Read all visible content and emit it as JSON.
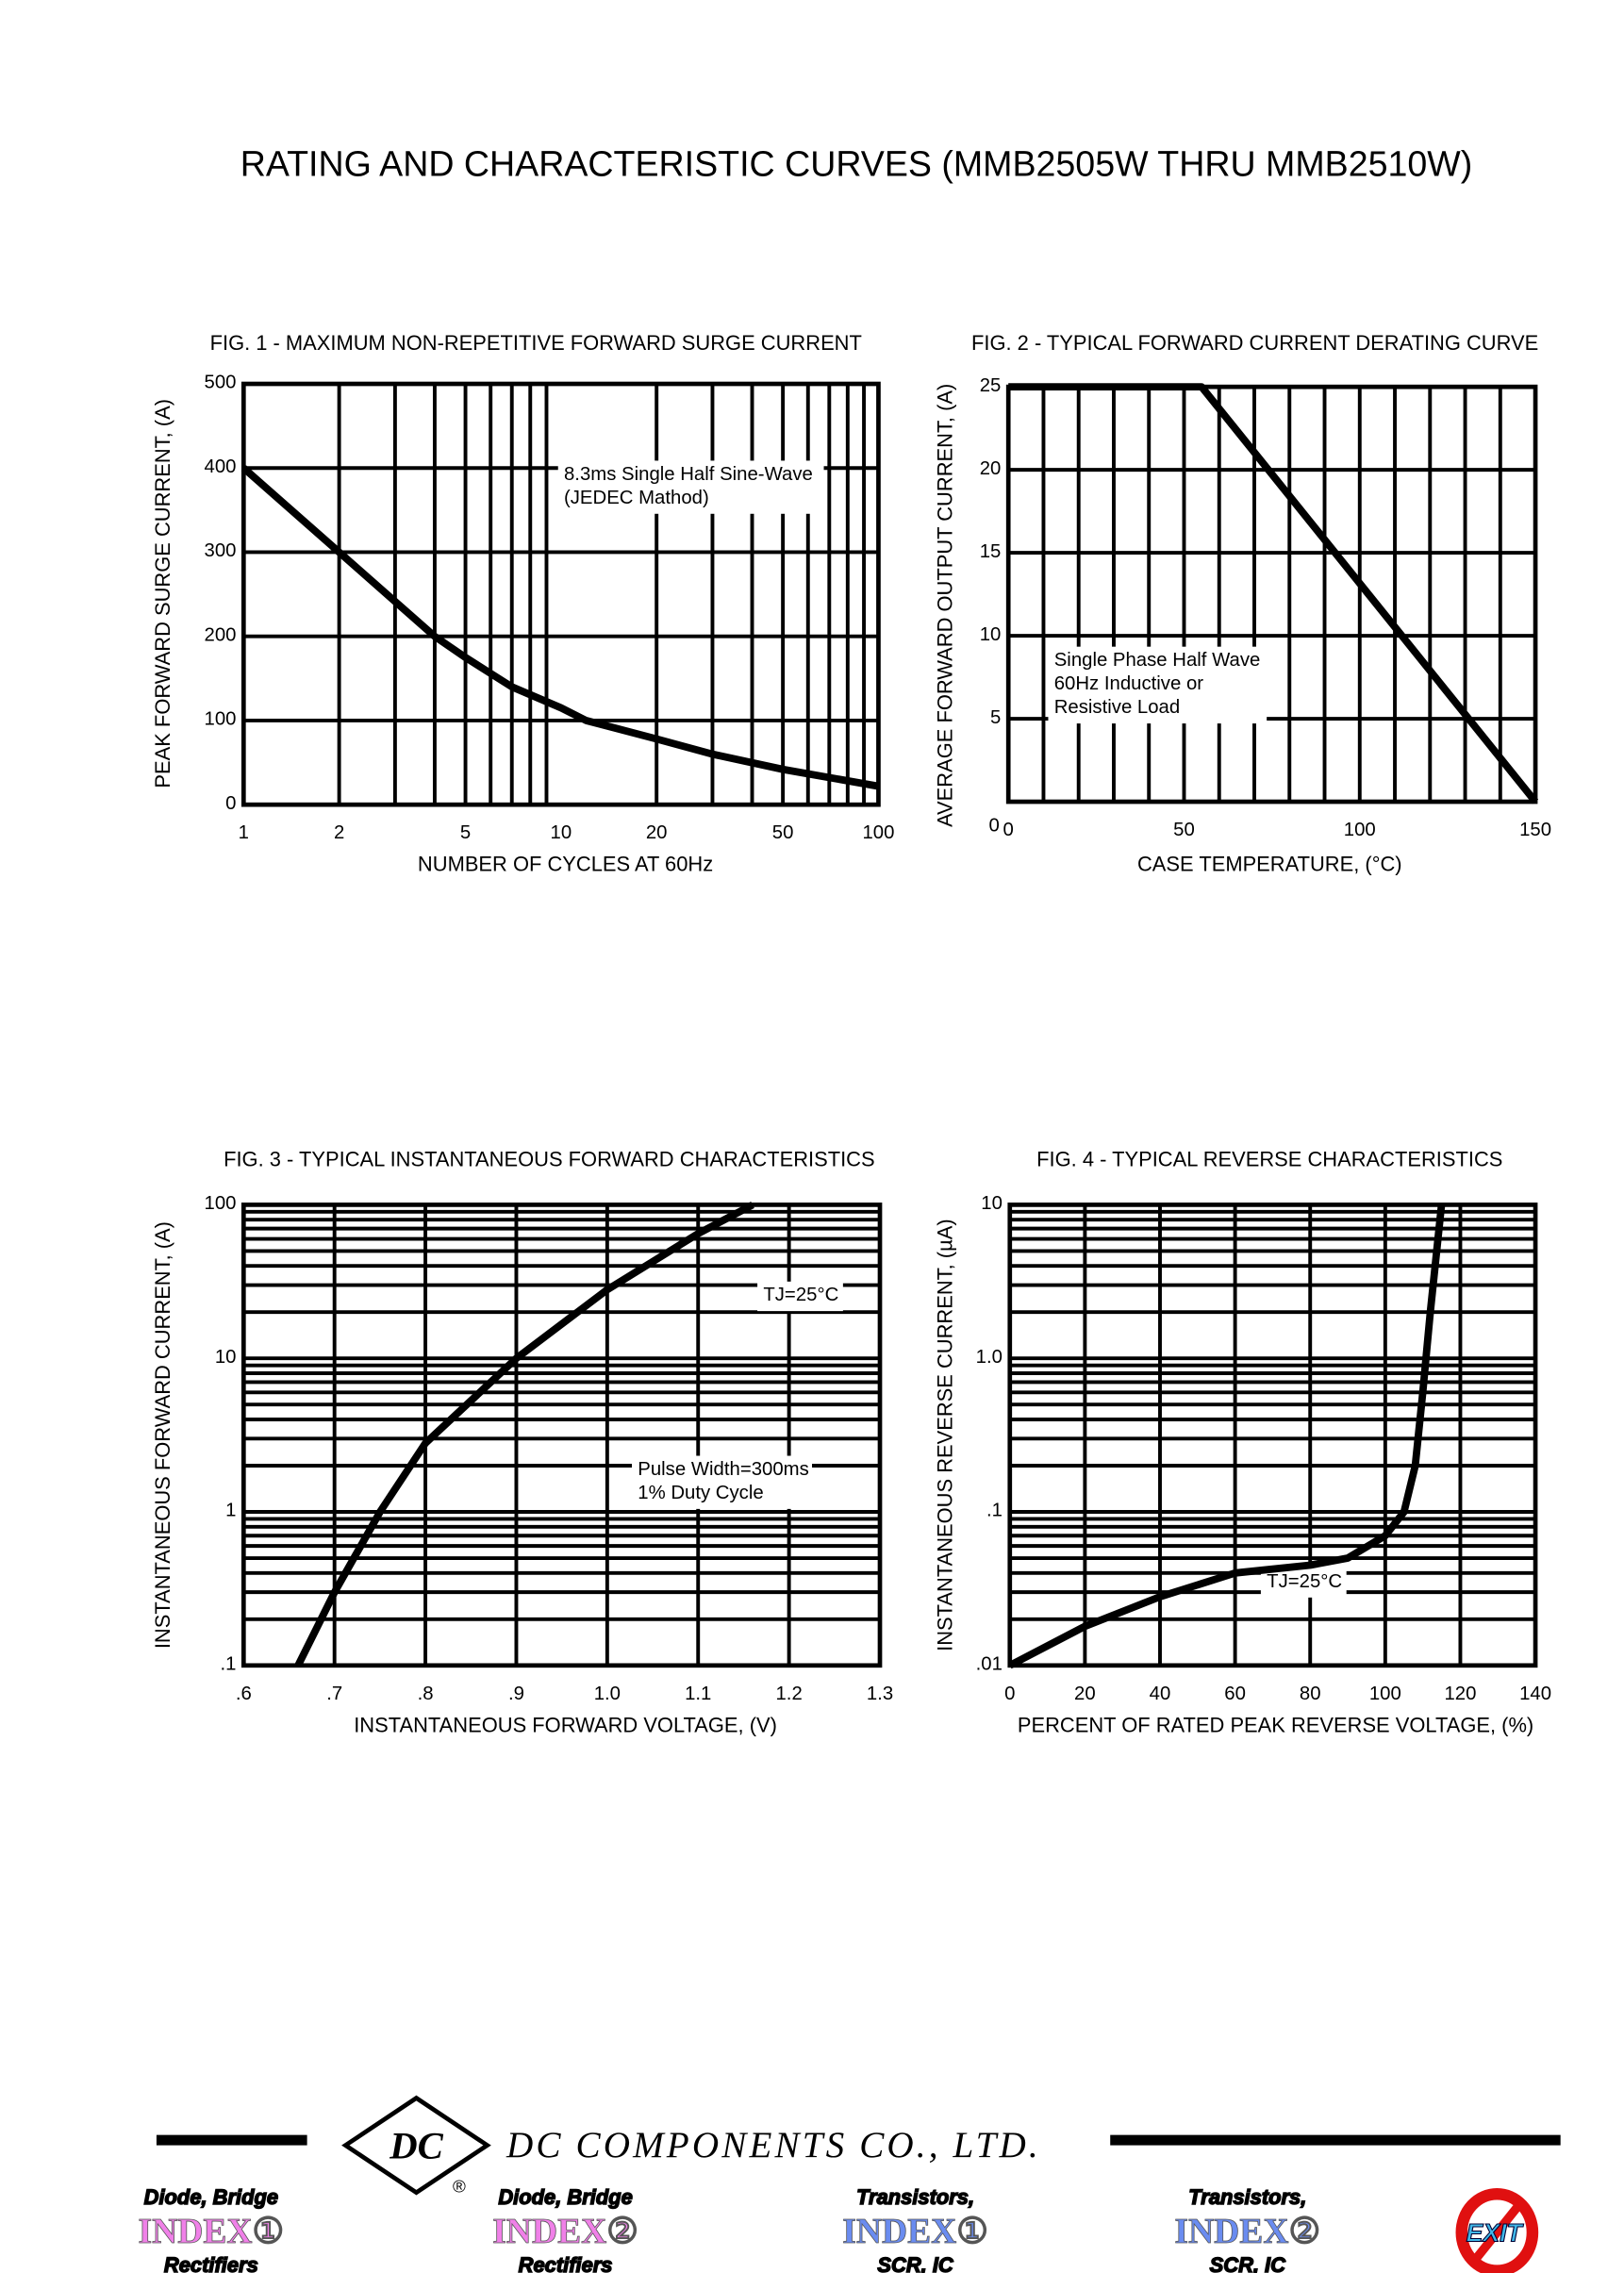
{
  "page_title": "RATING AND CHARACTERISTIC CURVES (MMB2505W THRU MMB2510W)",
  "chart_data": [
    {
      "type": "line",
      "title": "FIG. 1 - MAXIMUM NON-REPETITIVE FORWARD SURGE CURRENT",
      "xlabel": "NUMBER OF CYCLES AT 60Hz",
      "ylabel": "PEAK FORWARD SURGE CURRENT, (A)",
      "x_scale": "log",
      "xlim": [
        1,
        100
      ],
      "ylim": [
        0,
        500
      ],
      "x_ticks": [
        "1",
        "2",
        "5",
        "10",
        "20",
        "50",
        "100"
      ],
      "x_tick_values": [
        1,
        2,
        5,
        10,
        20,
        50,
        100
      ],
      "y_ticks": [
        "0",
        "100",
        "200",
        "300",
        "400",
        "500"
      ],
      "y_tick_values": [
        0,
        100,
        200,
        300,
        400,
        500
      ],
      "annotation": [
        "8.3ms Single Half Sine-Wave",
        "(JEDEC Mathod)"
      ],
      "grid": true,
      "x": [
        1,
        2,
        4,
        5,
        7,
        10,
        12,
        20,
        30,
        50,
        100
      ],
      "y": [
        400,
        300,
        200,
        175,
        140,
        115,
        100,
        78,
        60,
        42,
        22
      ]
    },
    {
      "type": "line",
      "title": "FIG. 2 - TYPICAL FORWARD CURRENT DERATING CURVE",
      "xlabel": "CASE TEMPERATURE, (°C)",
      "ylabel": "AVERAGE FORWARD OUTPUT CURRENT, (A)",
      "x_scale": "linear",
      "xlim": [
        0,
        150
      ],
      "ylim": [
        0,
        25
      ],
      "x_ticks": [
        "0",
        "50",
        "100",
        "150"
      ],
      "x_tick_values": [
        0,
        50,
        100,
        150
      ],
      "y_ticks": [
        "5",
        "10",
        "15",
        "20",
        "25"
      ],
      "y_tick_values": [
        5,
        10,
        15,
        20,
        25
      ],
      "annotation": [
        "Single Phase Half Wave",
        "60Hz Inductive or",
        "Resistive Load"
      ],
      "grid": true,
      "x": [
        0,
        55,
        150
      ],
      "y": [
        25,
        25,
        0
      ]
    },
    {
      "type": "line",
      "title": "FIG. 3 - TYPICAL INSTANTANEOUS FORWARD CHARACTERISTICS",
      "xlabel": "INSTANTANEOUS FORWARD VOLTAGE, (V)",
      "ylabel": "INSTANTANEOUS FORWARD CURRENT, (A)",
      "x_scale": "linear",
      "y_scale": "log",
      "xlim": [
        0.6,
        1.3
      ],
      "ylim": [
        0.1,
        100
      ],
      "x_ticks": [
        ".6",
        ".7",
        ".8",
        ".9",
        "1.0",
        "1.1",
        "1.2",
        "1.3"
      ],
      "x_tick_values": [
        0.6,
        0.7,
        0.8,
        0.9,
        1.0,
        1.1,
        1.2,
        1.3
      ],
      "y_ticks": [
        ".1",
        "1",
        "10",
        "100"
      ],
      "y_tick_values": [
        0.1,
        1,
        10,
        100
      ],
      "annotation": [
        "TJ=25°C"
      ],
      "annotation2": [
        "Pulse Width=300ms",
        "1% Duty Cycle"
      ],
      "grid": true,
      "x": [
        0.66,
        0.7,
        0.75,
        0.8,
        0.9,
        1.0,
        1.1,
        1.16
      ],
      "y": [
        0.1,
        0.3,
        1,
        2.8,
        10,
        28,
        65,
        100
      ]
    },
    {
      "type": "line",
      "title": "FIG. 4 - TYPICAL REVERSE CHARACTERISTICS",
      "xlabel": "PERCENT OF RATED PEAK REVERSE VOLTAGE, (%)",
      "ylabel": "INSTANTANEOUS REVERSE CURRENT, (µA)",
      "x_scale": "linear",
      "y_scale": "log",
      "xlim": [
        0,
        140
      ],
      "ylim": [
        0.01,
        10
      ],
      "x_ticks": [
        "0",
        "20",
        "40",
        "60",
        "80",
        "100",
        "120",
        "140"
      ],
      "x_tick_values": [
        0,
        20,
        40,
        60,
        80,
        100,
        120,
        140
      ],
      "y_ticks": [
        ".01",
        ".1",
        "1.0",
        "10"
      ],
      "y_tick_values": [
        0.01,
        0.1,
        1,
        10
      ],
      "annotation": [
        "TJ=25°C"
      ],
      "grid": true,
      "x": [
        0,
        20,
        40,
        60,
        80,
        90,
        100,
        105,
        108,
        110,
        112,
        115
      ],
      "y": [
        0.01,
        0.018,
        0.028,
        0.04,
        0.045,
        0.05,
        0.07,
        0.1,
        0.2,
        0.6,
        2,
        10
      ]
    }
  ],
  "footer": {
    "company": "DC COMPONENTS CO., LTD.",
    "logo_text": "DC",
    "registered": "®",
    "nav": [
      {
        "top": "Diode, Bridge",
        "middle": "INDEX①",
        "bottom": "Rectifiers",
        "color": "#f080e8"
      },
      {
        "top": "Diode, Bridge",
        "middle": "INDEX②",
        "bottom": "Rectifiers",
        "color": "#f080e8"
      },
      {
        "top": "Transistors,",
        "middle": "INDEX①",
        "bottom": "SCR, IC",
        "color": "#6a8cf0"
      },
      {
        "top": "Transistors,",
        "middle": "INDEX②",
        "bottom": "SCR, IC",
        "color": "#6a8cf0"
      }
    ],
    "exit_label": "EXIT",
    "exit_color": "#e01010"
  }
}
